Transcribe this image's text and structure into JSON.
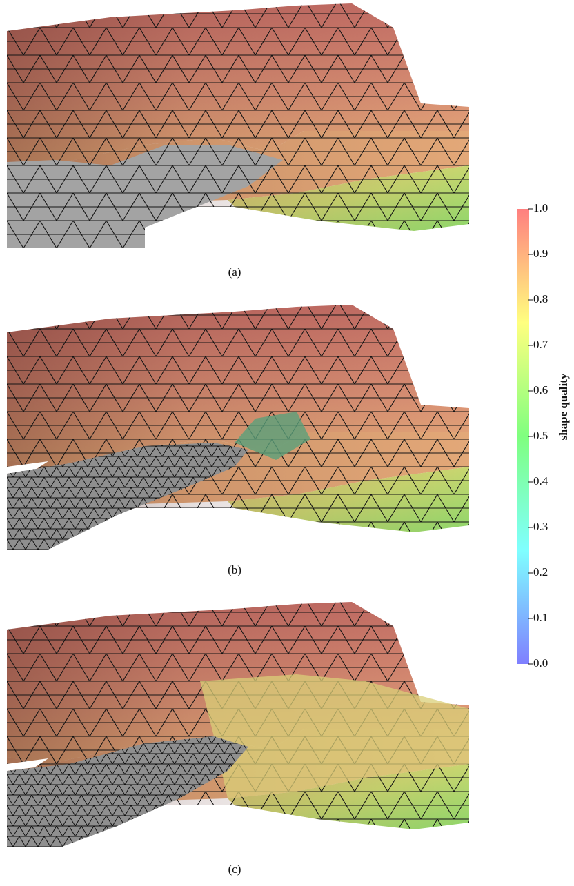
{
  "panels": [
    {
      "caption": "(a)"
    },
    {
      "caption": "(b)"
    },
    {
      "caption": "(c)"
    }
  ],
  "colorbar": {
    "label": "shape quality",
    "lim": [
      0,
      1
    ],
    "colors": [
      "#7f7fff",
      "#7fffff",
      "#7fff7f",
      "#ffff7f",
      "#ff7f7f"
    ],
    "ticks": [
      {
        "value": 0,
        "label": "0.0"
      },
      {
        "value": 0.1,
        "label": "0.1"
      },
      {
        "value": 0.2,
        "label": "0.2"
      },
      {
        "value": 0.3,
        "label": "0.3"
      },
      {
        "value": 0.4,
        "label": "0.4"
      },
      {
        "value": 0.5,
        "label": "0.5"
      },
      {
        "value": 0.6,
        "label": "0.6"
      },
      {
        "value": 0.7,
        "label": "0.7"
      },
      {
        "value": 0.8,
        "label": "0.8"
      },
      {
        "value": 0.9,
        "label": "0.9"
      },
      {
        "value": 1,
        "label": "1.0"
      }
    ]
  }
}
